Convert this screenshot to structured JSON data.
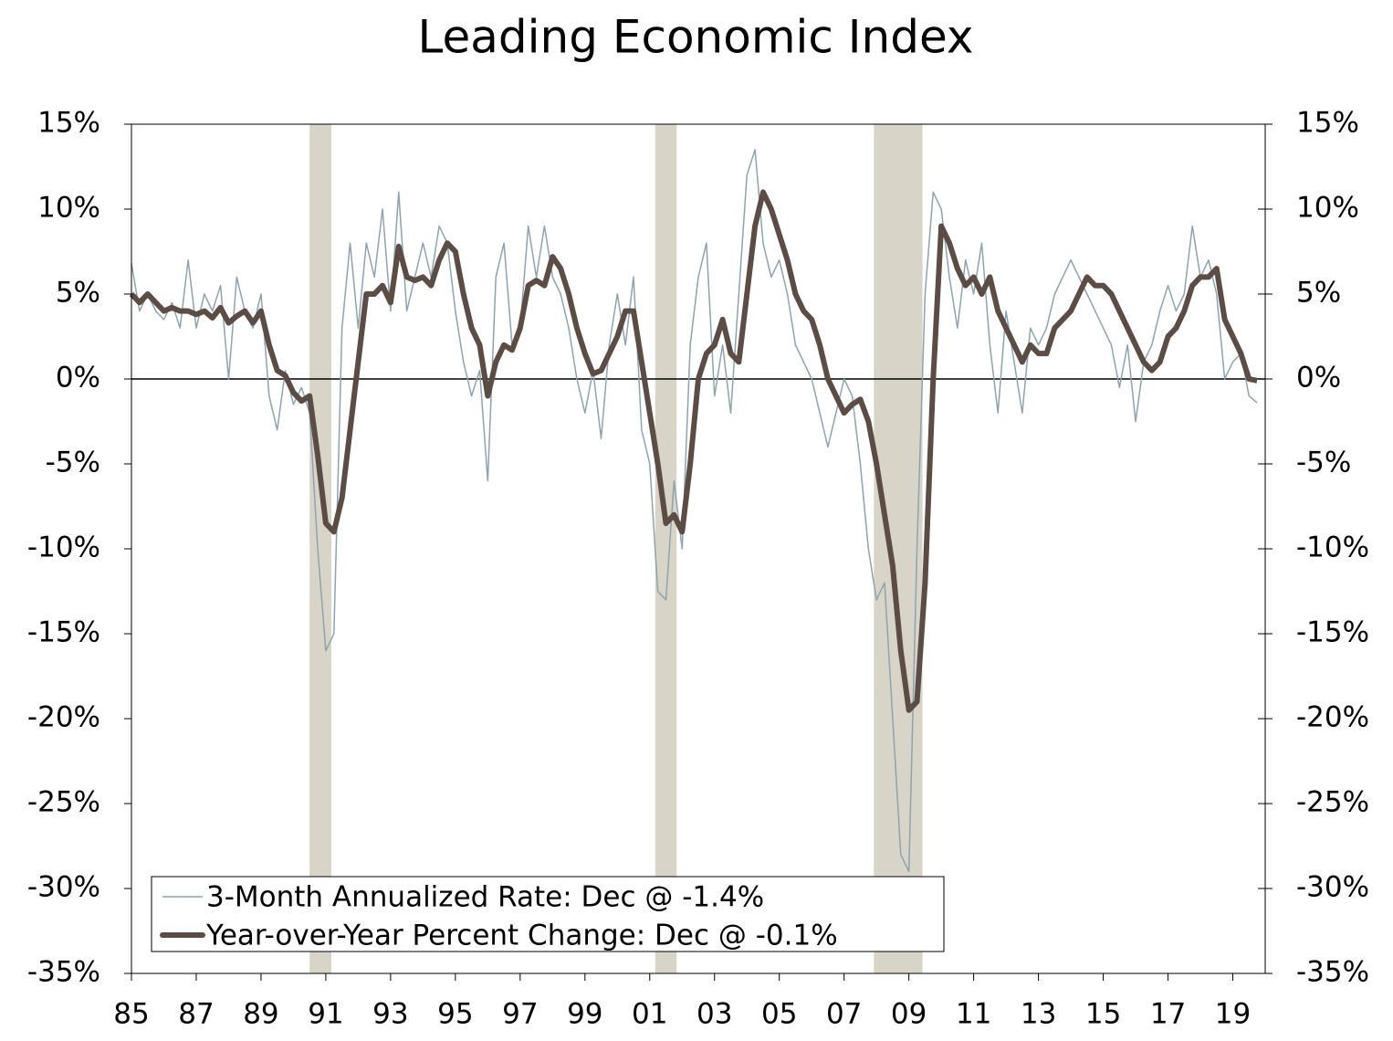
{
  "chart_data": {
    "type": "line",
    "title": "Leading Economic Index",
    "x": [
      1985,
      1985.25,
      1985.5,
      1985.75,
      1986,
      1986.25,
      1986.5,
      1986.75,
      1987,
      1987.25,
      1987.5,
      1987.75,
      1988,
      1988.25,
      1988.5,
      1988.75,
      1989,
      1989.25,
      1989.5,
      1989.75,
      1990,
      1990.25,
      1990.5,
      1990.75,
      1991,
      1991.25,
      1991.5,
      1991.75,
      1992,
      1992.25,
      1992.5,
      1992.75,
      1993,
      1993.25,
      1993.5,
      1993.75,
      1994,
      1994.25,
      1994.5,
      1994.75,
      1995,
      1995.25,
      1995.5,
      1995.75,
      1996,
      1996.25,
      1996.5,
      1996.75,
      1997,
      1997.25,
      1997.5,
      1997.75,
      1998,
      1998.25,
      1998.5,
      1998.75,
      1999,
      1999.25,
      1999.5,
      1999.75,
      2000,
      2000.25,
      2000.5,
      2000.75,
      2001,
      2001.25,
      2001.5,
      2001.75,
      2002,
      2002.25,
      2002.5,
      2002.75,
      2003,
      2003.25,
      2003.5,
      2003.75,
      2004,
      2004.25,
      2004.5,
      2004.75,
      2005,
      2005.25,
      2005.5,
      2005.75,
      2006,
      2006.25,
      2006.5,
      2006.75,
      2007,
      2007.25,
      2007.5,
      2007.75,
      2008,
      2008.25,
      2008.5,
      2008.75,
      2009,
      2009.25,
      2009.5,
      2009.75,
      2010,
      2010.25,
      2010.5,
      2010.75,
      2011,
      2011.25,
      2011.5,
      2011.75,
      2012,
      2012.25,
      2012.5,
      2012.75,
      2013,
      2013.25,
      2013.5,
      2013.75,
      2014,
      2014.25,
      2014.5,
      2014.75,
      2015,
      2015.25,
      2015.5,
      2015.75,
      2016,
      2016.25,
      2016.5,
      2016.75,
      2017,
      2017.25,
      2017.5,
      2017.75,
      2018,
      2018.25,
      2018.5,
      2018.75,
      2019,
      2019.25,
      2019.5,
      2019.75
    ],
    "series": [
      {
        "name": "3-Month Annualized Rate: Dec @ -1.4%",
        "color": "#8ea3b0",
        "width": 1.5,
        "values": [
          6.8,
          4.0,
          5.0,
          4.0,
          3.5,
          4.5,
          3.0,
          7.0,
          3.0,
          5.0,
          4.0,
          5.5,
          0.0,
          6.0,
          4.0,
          3.0,
          5.0,
          -1.0,
          -3.0,
          0.5,
          -1.5,
          -0.5,
          -2.0,
          -10.0,
          -16.0,
          -15.0,
          3.0,
          8.0,
          3.0,
          8.0,
          6.0,
          10.0,
          4.0,
          11.0,
          4.0,
          6.0,
          8.0,
          6.0,
          9.0,
          8.0,
          4.0,
          1.0,
          -1.0,
          0.5,
          -6.0,
          6.0,
          8.0,
          2.0,
          3.0,
          9.0,
          6.0,
          9.0,
          6.0,
          5.0,
          3.0,
          0.0,
          -2.0,
          0.5,
          -3.5,
          2.0,
          5.0,
          2.0,
          6.0,
          -3.0,
          -5.0,
          -12.5,
          -13.0,
          -6.0,
          -10.0,
          2.0,
          6.0,
          8.0,
          -1.0,
          2.0,
          -2.0,
          5.0,
          12.0,
          13.5,
          8.0,
          6.0,
          7.0,
          5.0,
          2.0,
          1.0,
          0.0,
          -2.0,
          -4.0,
          -2.0,
          0.0,
          -1.0,
          -5.0,
          -10.0,
          -13.0,
          -12.0,
          -20.0,
          -28.0,
          -29.0,
          -10.0,
          5.0,
          11.0,
          10.0,
          6.0,
          3.0,
          7.0,
          5.0,
          8.0,
          2.0,
          -2.0,
          4.0,
          1.0,
          -2.0,
          3.0,
          2.0,
          3.0,
          5.0,
          6.0,
          7.0,
          6.0,
          5.0,
          4.0,
          3.0,
          2.0,
          -0.5,
          2.0,
          -2.5,
          1.0,
          2.0,
          4.0,
          5.5,
          4.0,
          5.0,
          9.0,
          6.0,
          7.0,
          5.0,
          0.0,
          1.0,
          1.5,
          -1.0,
          -1.4
        ]
      },
      {
        "name": "Year-over-Year Percent Change: Dec @ -0.1%",
        "color": "#5b4d45",
        "width": 6,
        "values": [
          5.0,
          4.5,
          5.0,
          4.5,
          4.0,
          4.2,
          4.0,
          4.0,
          3.8,
          4.0,
          3.6,
          4.2,
          3.3,
          3.7,
          4.0,
          3.3,
          4.0,
          2.0,
          0.5,
          0.2,
          -0.8,
          -1.3,
          -1.0,
          -4.5,
          -8.5,
          -9.0,
          -7.0,
          -3.0,
          1.0,
          5.0,
          5.0,
          5.5,
          4.5,
          7.8,
          6.0,
          5.8,
          6.0,
          5.5,
          7.0,
          8.0,
          7.5,
          5.0,
          3.0,
          2.0,
          -1.0,
          1.0,
          2.0,
          1.7,
          3.0,
          5.5,
          5.8,
          5.5,
          7.2,
          6.5,
          5.0,
          3.0,
          1.5,
          0.3,
          0.5,
          1.5,
          2.5,
          4.0,
          4.0,
          1.0,
          -2.0,
          -5.0,
          -8.5,
          -8.0,
          -9.0,
          -5.0,
          0.0,
          1.5,
          2.0,
          3.5,
          1.5,
          1.0,
          5.0,
          9.0,
          11.0,
          10.0,
          8.5,
          7.0,
          5.0,
          4.0,
          3.5,
          2.0,
          0.0,
          -1.0,
          -2.0,
          -1.5,
          -1.2,
          -2.5,
          -5.0,
          -8.0,
          -11.0,
          -16.0,
          -19.5,
          -19.0,
          -12.0,
          0.0,
          9.0,
          8.0,
          6.5,
          5.5,
          6.0,
          5.0,
          6.0,
          4.0,
          3.0,
          2.0,
          1.0,
          2.0,
          1.5,
          1.5,
          3.0,
          3.5,
          4.0,
          5.0,
          6.0,
          5.5,
          5.5,
          5.0,
          4.0,
          3.0,
          2.0,
          1.0,
          0.5,
          1.0,
          2.5,
          3.0,
          4.0,
          5.5,
          6.0,
          6.0,
          6.5,
          3.5,
          2.5,
          1.5,
          0.0,
          -0.1
        ]
      }
    ],
    "recessions": [
      [
        1990.5,
        1991.17
      ],
      [
        2001.17,
        2001.83
      ],
      [
        2007.92,
        2009.42
      ]
    ],
    "recession_color": "#d8d4c8",
    "xlim": [
      1985,
      2020
    ],
    "xticks": [
      {
        "value": 1985,
        "label": "85"
      },
      {
        "value": 1987,
        "label": "87"
      },
      {
        "value": 1989,
        "label": "89"
      },
      {
        "value": 1991,
        "label": "91"
      },
      {
        "value": 1993,
        "label": "93"
      },
      {
        "value": 1995,
        "label": "95"
      },
      {
        "value": 1997,
        "label": "97"
      },
      {
        "value": 1999,
        "label": "99"
      },
      {
        "value": 2001,
        "label": "01"
      },
      {
        "value": 2003,
        "label": "03"
      },
      {
        "value": 2005,
        "label": "05"
      },
      {
        "value": 2007,
        "label": "07"
      },
      {
        "value": 2009,
        "label": "09"
      },
      {
        "value": 2011,
        "label": "11"
      },
      {
        "value": 2013,
        "label": "13"
      },
      {
        "value": 2015,
        "label": "15"
      },
      {
        "value": 2017,
        "label": "17"
      },
      {
        "value": 2019,
        "label": "19"
      }
    ],
    "ylim": [
      -35,
      15
    ],
    "yticks": [
      {
        "value": 15,
        "label": "15%"
      },
      {
        "value": 10,
        "label": "10%"
      },
      {
        "value": 5,
        "label": "5%"
      },
      {
        "value": 0,
        "label": "0%"
      },
      {
        "value": -5,
        "label": "-5%"
      },
      {
        "value": -10,
        "label": "-10%"
      },
      {
        "value": -15,
        "label": "-15%"
      },
      {
        "value": -20,
        "label": "-20%"
      },
      {
        "value": -25,
        "label": "-25%"
      },
      {
        "value": -30,
        "label": "-30%"
      },
      {
        "value": -35,
        "label": "-35%"
      }
    ],
    "y2lim": [
      -35,
      15
    ],
    "y2ticks": [
      {
        "value": 15,
        "label": "15%"
      },
      {
        "value": 10,
        "label": "10%"
      },
      {
        "value": 5,
        "label": "5%"
      },
      {
        "value": 0,
        "label": "0%"
      },
      {
        "value": -5,
        "label": "-5%"
      },
      {
        "value": -10,
        "label": "-10%"
      },
      {
        "value": -15,
        "label": "-15%"
      },
      {
        "value": -20,
        "label": "-20%"
      },
      {
        "value": -25,
        "label": "-25%"
      },
      {
        "value": -30,
        "label": "-30%"
      },
      {
        "value": -35,
        "label": "-35%"
      }
    ],
    "legend": "lower left"
  }
}
